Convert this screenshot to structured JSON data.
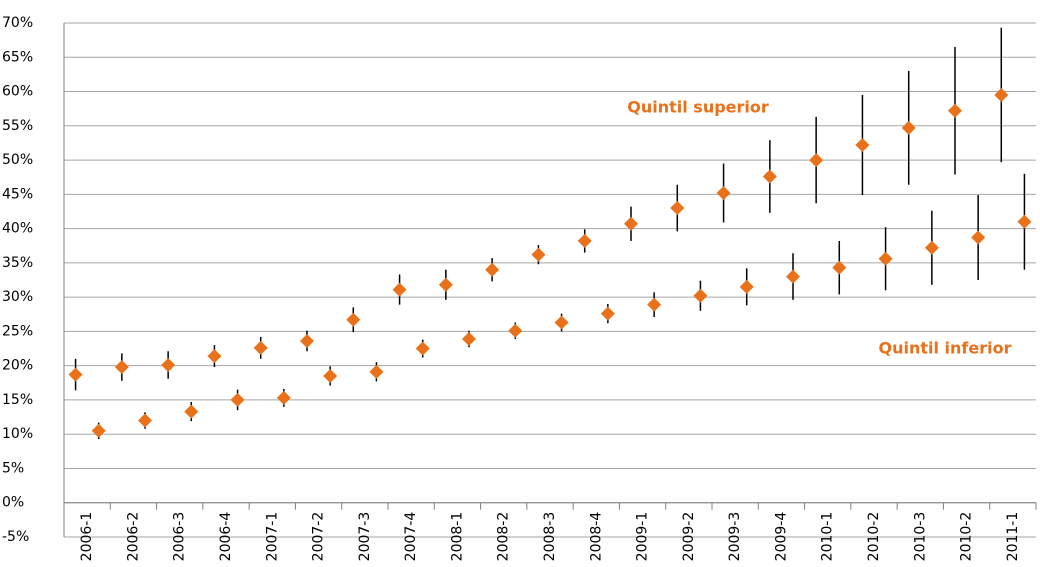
{
  "chart_data": {
    "type": "errorbar",
    "categories": [
      "2006-1",
      "2006-2",
      "2006-3",
      "2006-4",
      "2007-1",
      "2007-2",
      "2007-3",
      "2007-4",
      "2008-1",
      "2008-2",
      "2008-3",
      "2008-4",
      "2009-1",
      "2009-2",
      "2009-3",
      "2009-4",
      "2010-1",
      "2010-2",
      "2010-3",
      "2010-2",
      "2011-1"
    ],
    "series": [
      {
        "name": "Quintil superior",
        "color": "#e8711a",
        "values": [
          18.7,
          19.8,
          20.1,
          21.4,
          22.6,
          23.6,
          26.7,
          31.1,
          31.8,
          34.0,
          36.2,
          38.2,
          40.7,
          43.0,
          45.2,
          47.6,
          50.0,
          52.2,
          54.7,
          57.2,
          59.5
        ],
        "errors": [
          2.3,
          2.0,
          2.0,
          1.6,
          1.6,
          1.5,
          1.8,
          2.2,
          2.2,
          1.7,
          1.4,
          1.7,
          2.5,
          3.4,
          4.3,
          5.3,
          6.3,
          7.3,
          8.3,
          9.3,
          9.8
        ]
      },
      {
        "name": "Quintil inferior",
        "color": "#e8711a",
        "values": [
          10.5,
          12.0,
          13.3,
          15.0,
          15.3,
          18.5,
          19.1,
          22.5,
          23.9,
          25.1,
          26.3,
          27.6,
          28.9,
          30.2,
          31.5,
          33.0,
          34.3,
          35.6,
          37.2,
          38.7,
          41.0
        ],
        "errors": [
          1.2,
          1.2,
          1.4,
          1.5,
          1.3,
          1.4,
          1.4,
          1.3,
          1.2,
          1.2,
          1.3,
          1.4,
          1.8,
          2.2,
          2.7,
          3.4,
          3.9,
          4.6,
          5.4,
          6.2,
          7.0
        ]
      }
    ],
    "ylim": [
      -5,
      70
    ],
    "yticks": [
      {
        "value": -5,
        "label": "-5%"
      },
      {
        "value": 0,
        "label": "0%"
      },
      {
        "value": 5,
        "label": "5%"
      },
      {
        "value": 10,
        "label": "10%"
      },
      {
        "value": 15,
        "label": "15%"
      },
      {
        "value": 20,
        "label": "20%"
      },
      {
        "value": 25,
        "label": "25%"
      },
      {
        "value": 30,
        "label": "30%"
      },
      {
        "value": 35,
        "label": "35%"
      },
      {
        "value": 40,
        "label": "40%"
      },
      {
        "value": 45,
        "label": "45%"
      },
      {
        "value": 50,
        "label": "50%"
      },
      {
        "value": 55,
        "label": "55%"
      },
      {
        "value": 60,
        "label": "60%"
      },
      {
        "value": 65,
        "label": "65%"
      },
      {
        "value": 70,
        "label": "70%"
      }
    ],
    "grid": true
  }
}
